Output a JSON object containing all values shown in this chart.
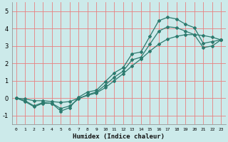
{
  "xlabel": "Humidex (Indice chaleur)",
  "xlim": [
    -0.5,
    23.5
  ],
  "ylim": [
    -1.5,
    5.5
  ],
  "yticks": [
    -1,
    0,
    1,
    2,
    3,
    4,
    5
  ],
  "xticks": [
    0,
    1,
    2,
    3,
    4,
    5,
    6,
    7,
    8,
    9,
    10,
    11,
    12,
    13,
    14,
    15,
    16,
    17,
    18,
    19,
    20,
    21,
    22,
    23
  ],
  "bg_color": "#cceaea",
  "plot_bg_color": "#cceaea",
  "line_color": "#2d7a6e",
  "grid_color": "#e88080",
  "series": [
    {
      "x": [
        0,
        1,
        2,
        3,
        4,
        5,
        6,
        7,
        8,
        9,
        10,
        11,
        12,
        13,
        14,
        15,
        16,
        17,
        18,
        19,
        20,
        21,
        22,
        23
      ],
      "y": [
        0.0,
        -0.2,
        -0.5,
        -0.3,
        -0.3,
        -0.75,
        -0.55,
        0.05,
        0.35,
        0.45,
        0.95,
        1.45,
        1.75,
        2.55,
        2.65,
        3.55,
        4.45,
        4.65,
        4.55,
        4.25,
        4.05,
        3.15,
        3.25,
        3.35
      ]
    },
    {
      "x": [
        0,
        1,
        2,
        3,
        4,
        5,
        6,
        7,
        8,
        9,
        10,
        11,
        12,
        13,
        14,
        15,
        16,
        17,
        18,
        19,
        20,
        21,
        22,
        23
      ],
      "y": [
        0.0,
        -0.15,
        -0.45,
        -0.25,
        -0.3,
        -0.6,
        -0.45,
        -0.05,
        0.2,
        0.35,
        0.75,
        1.2,
        1.55,
        2.2,
        2.35,
        3.1,
        3.85,
        4.1,
        4.05,
        3.85,
        3.65,
        2.9,
        3.0,
        3.35
      ]
    },
    {
      "x": [
        0,
        1,
        2,
        3,
        4,
        5,
        6,
        7,
        8,
        9,
        10,
        11,
        12,
        13,
        14,
        15,
        16,
        17,
        18,
        19,
        20,
        21,
        22,
        23
      ],
      "y": [
        0.0,
        -0.05,
        -0.15,
        -0.15,
        -0.2,
        -0.25,
        -0.2,
        0.0,
        0.15,
        0.3,
        0.6,
        1.0,
        1.4,
        1.85,
        2.25,
        2.7,
        3.1,
        3.4,
        3.55,
        3.65,
        3.65,
        3.6,
        3.5,
        3.35
      ]
    }
  ]
}
